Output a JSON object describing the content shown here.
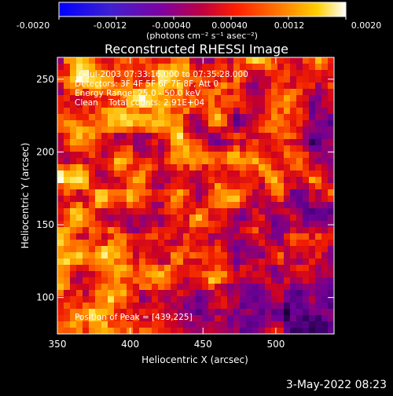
{
  "colorbar": {
    "tick_labels": [
      "-0.0020",
      "-0.0012",
      "-0.00040",
      "0.00040",
      "0.0012",
      "0.0020"
    ],
    "units": "(photons cm⁻² s⁻¹ asec⁻²)",
    "colors": [
      "#0000ff",
      "#5020c0",
      "#8000a0",
      "#c00040",
      "#ff2000",
      "#ff8000",
      "#ffd000",
      "#ffffff"
    ]
  },
  "chart_data": {
    "type": "heatmap",
    "title": "Reconstructed RHESSI Image",
    "xlabel": "Heliocentric X (arcsec)",
    "ylabel": "Heliocentric Y (arcsec)",
    "xlim": [
      350,
      540
    ],
    "ylim": [
      75,
      265
    ],
    "x_ticks": [
      350,
      400,
      450,
      500
    ],
    "y_ticks": [
      100,
      150,
      200,
      250
    ],
    "colorbar_range": [
      -0.002,
      0.002
    ],
    "peak": [
      439,
      225
    ]
  },
  "annotations": {
    "line1": "6-Jul-2003 07:33:16.000 to 07:35:28.000",
    "line2": "Detectors: 3F 4F 5F 6F 7F 8F, Att 0",
    "line3": "Energy Range: 25.0 - 50.0 keV",
    "line4": "Clean    Total counts: 2.91E+04",
    "peak_label": "Position of Peak = [439,225]"
  },
  "footer_date": "3-May-2022 08:23"
}
